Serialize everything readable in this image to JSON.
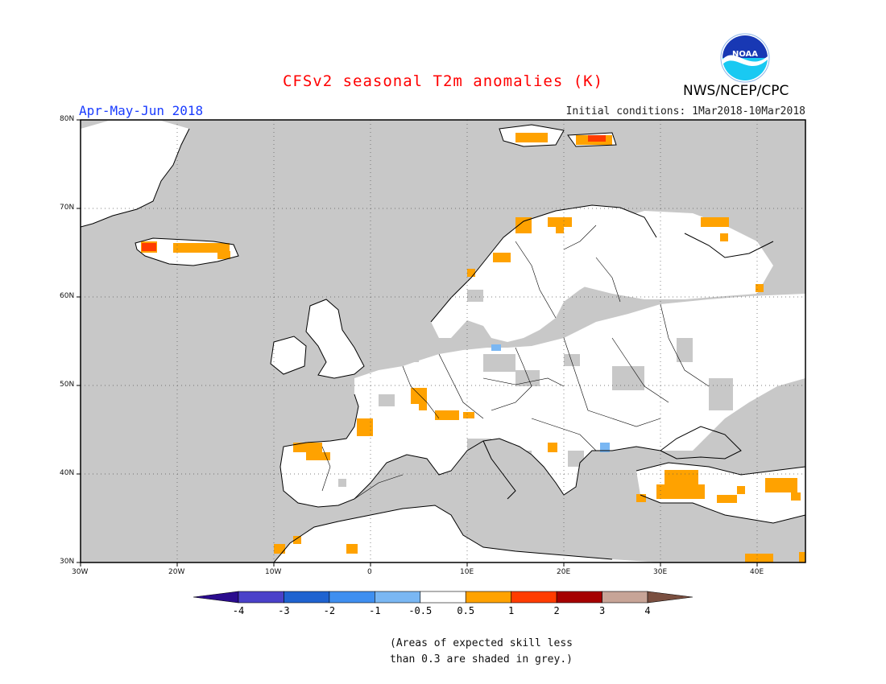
{
  "header": {
    "title": "CFSv2 seasonal T2m anomalies (K)",
    "period": "Apr-May-Jun 2018",
    "initial_conditions": "Initial conditions: 1Mar2018-10Mar2018",
    "agency": "NWS/NCEP/CPC",
    "logo_text": "NOAA"
  },
  "map": {
    "region": "Europe",
    "lat_labels": [
      "80N",
      "70N",
      "60N",
      "50N",
      "40N",
      "30N"
    ],
    "lon_labels": [
      "30W",
      "20W",
      "10W",
      "0",
      "10E",
      "20E",
      "30E",
      "40E"
    ],
    "lat_range": [
      30,
      80
    ],
    "lon_range": [
      -30,
      45
    ],
    "grid": "dotted"
  },
  "legend": {
    "labels": [
      "-4",
      "-3",
      "-2",
      "-1",
      "-0.5",
      "0.5",
      "1",
      "2",
      "3",
      "4"
    ],
    "colors": [
      "#2b0c8e",
      "#4a41c9",
      "#1f63d0",
      "#3f8ff0",
      "#7ab7f3",
      "#ffffff",
      "#ffa200",
      "#ff3c00",
      "#a50000",
      "#c7a497",
      "#7a4f40"
    ]
  },
  "note": {
    "line1": "(Areas of expected skill less",
    "line2": "than 0.3 are shaded in grey.)"
  },
  "colors": {
    "title": "#ff0000",
    "period": "#1a3cff",
    "skill_grey": "#c8c8c8",
    "positive_anomaly": "#ffa200"
  }
}
